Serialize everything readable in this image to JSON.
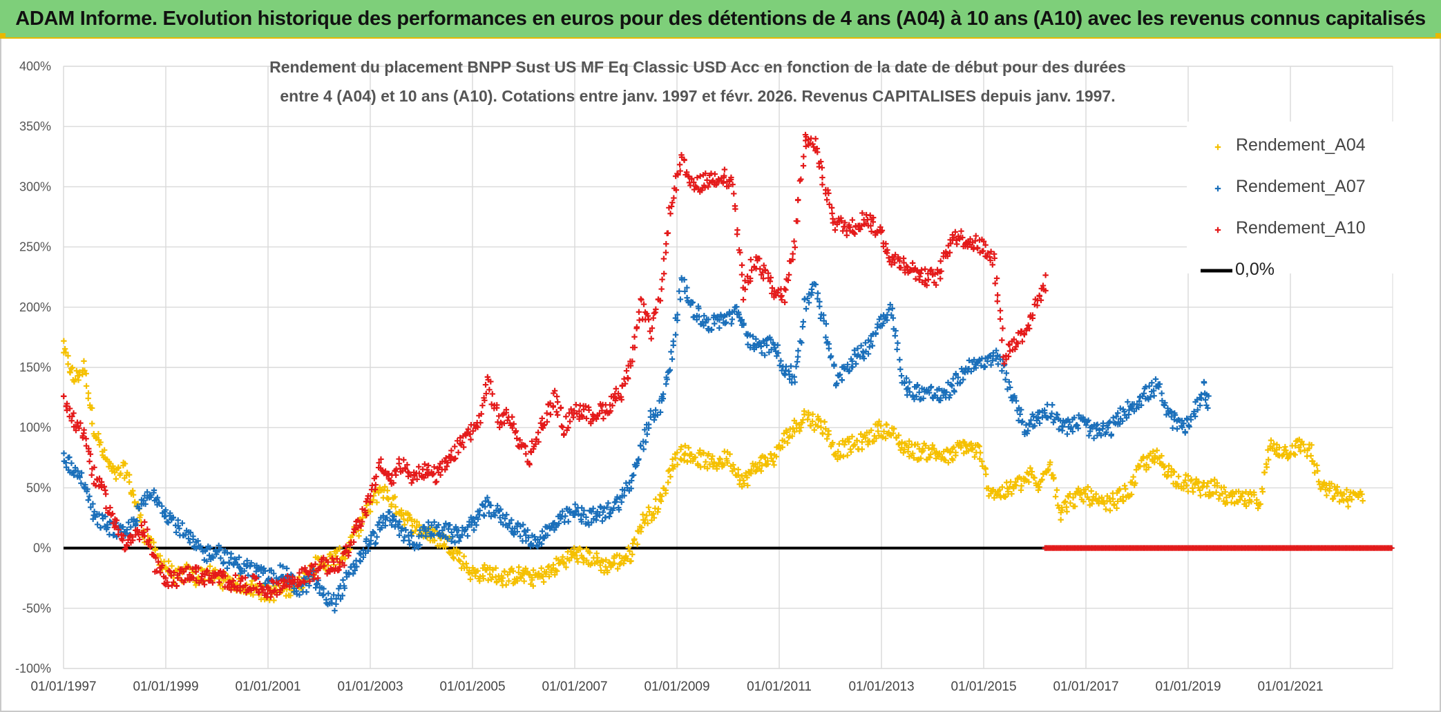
{
  "banner": {
    "title": "ADAM Informe. Evolution historique des performances en euros pour des détentions de 4 ans (A04) à 10 ans (A10) avec les revenus connus capitalisés"
  },
  "chart_data": {
    "type": "scatter",
    "title_line1": "Rendement du placement BNPP Sust US MF Eq Classic USD Acc en fonction de la date de début pour des durées",
    "title_line2": "entre 4 (A04) et 10 ans (A10). Cotations entre janv. 1997 et févr. 2026. Revenus CAPITALISES depuis janv. 1997.",
    "xlabel": "",
    "ylabel": "",
    "x_ticks": [
      "01/01/1997",
      "01/01/1999",
      "01/01/2001",
      "01/01/2003",
      "01/01/2005",
      "01/01/2007",
      "01/01/2009",
      "01/01/2011",
      "01/01/2013",
      "01/01/2015",
      "01/01/2017",
      "01/01/2019",
      "01/01/2021"
    ],
    "y_ticks": [
      "400%",
      "350%",
      "300%",
      "250%",
      "200%",
      "150%",
      "100%",
      "50%",
      "0%",
      "-50%",
      "-100%"
    ],
    "xlim": [
      "1997-01-01",
      "2023-01-01"
    ],
    "ylim": [
      -100,
      400
    ],
    "grid": true,
    "legend_position": "top-right",
    "series": [
      {
        "name": "Rendement_A04",
        "color": "#f5c000",
        "marker": "+",
        "points": [
          [
            1997.0,
            165
          ],
          [
            1997.2,
            140
          ],
          [
            1997.4,
            150
          ],
          [
            1997.6,
            100
          ],
          [
            1997.8,
            75
          ],
          [
            1998.0,
            60
          ],
          [
            1998.2,
            65
          ],
          [
            1998.4,
            40
          ],
          [
            1998.6,
            10
          ],
          [
            1998.8,
            -5
          ],
          [
            1999.0,
            -15
          ],
          [
            1999.2,
            -25
          ],
          [
            1999.4,
            -20
          ],
          [
            1999.6,
            -25
          ],
          [
            1999.8,
            -20
          ],
          [
            2000.0,
            -25
          ],
          [
            2000.2,
            -28
          ],
          [
            2000.5,
            -30
          ],
          [
            2000.8,
            -35
          ],
          [
            2001.0,
            -38
          ],
          [
            2001.3,
            -35
          ],
          [
            2001.6,
            -30
          ],
          [
            2001.9,
            -15
          ],
          [
            2002.2,
            -10
          ],
          [
            2002.5,
            -5
          ],
          [
            2002.8,
            20
          ],
          [
            2003.0,
            35
          ],
          [
            2003.2,
            50
          ],
          [
            2003.4,
            40
          ],
          [
            2003.6,
            30
          ],
          [
            2003.8,
            20
          ],
          [
            2004.0,
            15
          ],
          [
            2004.2,
            10
          ],
          [
            2004.5,
            5
          ],
          [
            2004.8,
            -10
          ],
          [
            2005.0,
            -22
          ],
          [
            2005.3,
            -20
          ],
          [
            2005.6,
            -25
          ],
          [
            2005.9,
            -22
          ],
          [
            2006.2,
            -25
          ],
          [
            2006.5,
            -20
          ],
          [
            2006.8,
            -10
          ],
          [
            2007.0,
            -5
          ],
          [
            2007.3,
            -8
          ],
          [
            2007.6,
            -15
          ],
          [
            2007.9,
            -10
          ],
          [
            2008.1,
            -5
          ],
          [
            2008.3,
            20
          ],
          [
            2008.5,
            30
          ],
          [
            2008.7,
            40
          ],
          [
            2008.9,
            70
          ],
          [
            2009.1,
            80
          ],
          [
            2009.4,
            75
          ],
          [
            2009.7,
            70
          ],
          [
            2010.0,
            75
          ],
          [
            2010.3,
            55
          ],
          [
            2010.6,
            70
          ],
          [
            2010.9,
            75
          ],
          [
            2011.1,
            90
          ],
          [
            2011.3,
            100
          ],
          [
            2011.5,
            110
          ],
          [
            2011.7,
            105
          ],
          [
            2011.9,
            100
          ],
          [
            2012.1,
            80
          ],
          [
            2012.4,
            85
          ],
          [
            2012.7,
            90
          ],
          [
            2013.0,
            100
          ],
          [
            2013.2,
            95
          ],
          [
            2013.4,
            85
          ],
          [
            2013.7,
            80
          ],
          [
            2014.0,
            80
          ],
          [
            2014.3,
            75
          ],
          [
            2014.6,
            85
          ],
          [
            2014.9,
            80
          ],
          [
            2015.1,
            50
          ],
          [
            2015.3,
            45
          ],
          [
            2015.6,
            50
          ],
          [
            2015.9,
            60
          ],
          [
            2016.1,
            50
          ],
          [
            2016.3,
            75
          ],
          [
            2016.5,
            30
          ],
          [
            2016.7,
            40
          ],
          [
            2017.0,
            45
          ],
          [
            2017.3,
            35
          ],
          [
            2017.6,
            40
          ],
          [
            2017.9,
            50
          ],
          [
            2018.1,
            70
          ],
          [
            2018.4,
            75
          ],
          [
            2018.7,
            60
          ],
          [
            2018.9,
            55
          ],
          [
            2019.2,
            50
          ],
          [
            2019.5,
            50
          ],
          [
            2019.8,
            40
          ],
          [
            2020.1,
            40
          ],
          [
            2020.4,
            40
          ],
          [
            2020.6,
            85
          ],
          [
            2020.9,
            80
          ],
          [
            2021.2,
            85
          ],
          [
            2021.4,
            80
          ],
          [
            2021.6,
            50
          ],
          [
            2021.9,
            45
          ],
          [
            2022.2,
            40
          ],
          [
            2022.4,
            45
          ]
        ]
      },
      {
        "name": "Rendement_A07",
        "color": "#1a6fba",
        "marker": "+",
        "points": [
          [
            1997.0,
            75
          ],
          [
            1997.2,
            65
          ],
          [
            1997.4,
            55
          ],
          [
            1997.6,
            25
          ],
          [
            1997.8,
            20
          ],
          [
            1998.0,
            15
          ],
          [
            1998.2,
            10
          ],
          [
            1998.4,
            25
          ],
          [
            1998.6,
            40
          ],
          [
            1998.8,
            45
          ],
          [
            1999.0,
            30
          ],
          [
            1999.2,
            20
          ],
          [
            1999.4,
            10
          ],
          [
            1999.6,
            0
          ],
          [
            1999.8,
            -5
          ],
          [
            2000.0,
            0
          ],
          [
            2000.2,
            -10
          ],
          [
            2000.5,
            -15
          ],
          [
            2000.8,
            -20
          ],
          [
            2001.0,
            -25
          ],
          [
            2001.3,
            -20
          ],
          [
            2001.6,
            -35
          ],
          [
            2001.9,
            -25
          ],
          [
            2002.1,
            -40
          ],
          [
            2002.3,
            -45
          ],
          [
            2002.5,
            -30
          ],
          [
            2002.7,
            -15
          ],
          [
            2002.9,
            0
          ],
          [
            2003.1,
            10
          ],
          [
            2003.3,
            25
          ],
          [
            2003.5,
            20
          ],
          [
            2003.7,
            10
          ],
          [
            2003.9,
            5
          ],
          [
            2004.1,
            15
          ],
          [
            2004.4,
            15
          ],
          [
            2004.7,
            10
          ],
          [
            2005.0,
            20
          ],
          [
            2005.3,
            35
          ],
          [
            2005.6,
            25
          ],
          [
            2005.9,
            15
          ],
          [
            2006.2,
            5
          ],
          [
            2006.5,
            15
          ],
          [
            2006.8,
            25
          ],
          [
            2007.0,
            30
          ],
          [
            2007.3,
            25
          ],
          [
            2007.6,
            30
          ],
          [
            2007.9,
            40
          ],
          [
            2008.1,
            55
          ],
          [
            2008.3,
            80
          ],
          [
            2008.5,
            110
          ],
          [
            2008.7,
            120
          ],
          [
            2008.9,
            160
          ],
          [
            2009.1,
            220
          ],
          [
            2009.3,
            200
          ],
          [
            2009.6,
            185
          ],
          [
            2009.9,
            190
          ],
          [
            2010.2,
            195
          ],
          [
            2010.4,
            175
          ],
          [
            2010.6,
            165
          ],
          [
            2010.9,
            170
          ],
          [
            2011.1,
            150
          ],
          [
            2011.3,
            140
          ],
          [
            2011.5,
            200
          ],
          [
            2011.7,
            220
          ],
          [
            2011.9,
            180
          ],
          [
            2012.1,
            140
          ],
          [
            2012.4,
            155
          ],
          [
            2012.7,
            165
          ],
          [
            2013.0,
            190
          ],
          [
            2013.2,
            200
          ],
          [
            2013.4,
            140
          ],
          [
            2013.6,
            130
          ],
          [
            2013.9,
            130
          ],
          [
            2014.2,
            125
          ],
          [
            2014.5,
            140
          ],
          [
            2014.8,
            155
          ],
          [
            2015.0,
            150
          ],
          [
            2015.2,
            160
          ],
          [
            2015.4,
            150
          ],
          [
            2015.6,
            120
          ],
          [
            2015.8,
            100
          ],
          [
            2016.1,
            110
          ],
          [
            2016.3,
            115
          ],
          [
            2016.6,
            100
          ],
          [
            2016.9,
            105
          ],
          [
            2017.2,
            95
          ],
          [
            2017.5,
            100
          ],
          [
            2017.8,
            115
          ],
          [
            2018.1,
            125
          ],
          [
            2018.4,
            135
          ],
          [
            2018.6,
            110
          ],
          [
            2018.9,
            100
          ],
          [
            2019.1,
            110
          ],
          [
            2019.3,
            135
          ],
          [
            2019.4,
            120
          ]
        ]
      },
      {
        "name": "Rendement_A10",
        "color": "#e41a1a",
        "marker": "+",
        "points": [
          [
            1997.0,
            125
          ],
          [
            1997.2,
            105
          ],
          [
            1997.4,
            95
          ],
          [
            1997.6,
            60
          ],
          [
            1997.8,
            45
          ],
          [
            1998.0,
            20
          ],
          [
            1998.2,
            5
          ],
          [
            1998.4,
            10
          ],
          [
            1998.6,
            15
          ],
          [
            1998.8,
            -15
          ],
          [
            1999.0,
            -25
          ],
          [
            1999.2,
            -25
          ],
          [
            1999.5,
            -20
          ],
          [
            1999.8,
            -25
          ],
          [
            2000.1,
            -25
          ],
          [
            2000.4,
            -30
          ],
          [
            2000.7,
            -30
          ],
          [
            2001.0,
            -35
          ],
          [
            2001.3,
            -30
          ],
          [
            2001.6,
            -25
          ],
          [
            2001.9,
            -20
          ],
          [
            2002.1,
            -15
          ],
          [
            2002.3,
            -15
          ],
          [
            2002.5,
            -10
          ],
          [
            2002.7,
            15
          ],
          [
            2003.0,
            40
          ],
          [
            2003.2,
            70
          ],
          [
            2003.4,
            55
          ],
          [
            2003.6,
            70
          ],
          [
            2003.8,
            60
          ],
          [
            2004.0,
            65
          ],
          [
            2004.3,
            60
          ],
          [
            2004.6,
            75
          ],
          [
            2004.9,
            95
          ],
          [
            2005.1,
            100
          ],
          [
            2005.3,
            140
          ],
          [
            2005.5,
            105
          ],
          [
            2005.7,
            110
          ],
          [
            2005.9,
            90
          ],
          [
            2006.1,
            75
          ],
          [
            2006.3,
            95
          ],
          [
            2006.6,
            125
          ],
          [
            2006.8,
            100
          ],
          [
            2007.0,
            115
          ],
          [
            2007.3,
            110
          ],
          [
            2007.6,
            115
          ],
          [
            2007.9,
            130
          ],
          [
            2008.1,
            150
          ],
          [
            2008.3,
            200
          ],
          [
            2008.5,
            180
          ],
          [
            2008.7,
            220
          ],
          [
            2008.9,
            290
          ],
          [
            2009.1,
            320
          ],
          [
            2009.3,
            300
          ],
          [
            2009.6,
            305
          ],
          [
            2009.9,
            310
          ],
          [
            2010.1,
            300
          ],
          [
            2010.3,
            210
          ],
          [
            2010.5,
            240
          ],
          [
            2010.7,
            230
          ],
          [
            2010.9,
            210
          ],
          [
            2011.1,
            210
          ],
          [
            2011.3,
            250
          ],
          [
            2011.5,
            340
          ],
          [
            2011.7,
            335
          ],
          [
            2011.9,
            300
          ],
          [
            2012.1,
            270
          ],
          [
            2012.4,
            265
          ],
          [
            2012.7,
            275
          ],
          [
            2013.0,
            260
          ],
          [
            2013.2,
            240
          ],
          [
            2013.5,
            235
          ],
          [
            2013.8,
            225
          ],
          [
            2014.1,
            225
          ],
          [
            2014.4,
            260
          ],
          [
            2014.7,
            255
          ],
          [
            2015.0,
            250
          ],
          [
            2015.2,
            240
          ],
          [
            2015.4,
            160
          ],
          [
            2015.6,
            170
          ],
          [
            2015.8,
            180
          ],
          [
            2016.0,
            200
          ],
          [
            2016.2,
            220
          ]
        ]
      },
      {
        "name": "0,0%",
        "color": "#000000",
        "marker": "line",
        "points": [
          [
            1997.0,
            0
          ],
          [
            2023.0,
            0
          ]
        ]
      }
    ],
    "zero_red_run": [
      2016.2,
      2023.0
    ]
  },
  "legend": {
    "items": [
      {
        "label": "Rendement_A04",
        "color": "#f5c000"
      },
      {
        "label": "Rendement_A07",
        "color": "#1a6fba"
      },
      {
        "label": "Rendement_A10",
        "color": "#e41a1a"
      },
      {
        "label": "0,0%",
        "color": "#000000"
      }
    ]
  }
}
